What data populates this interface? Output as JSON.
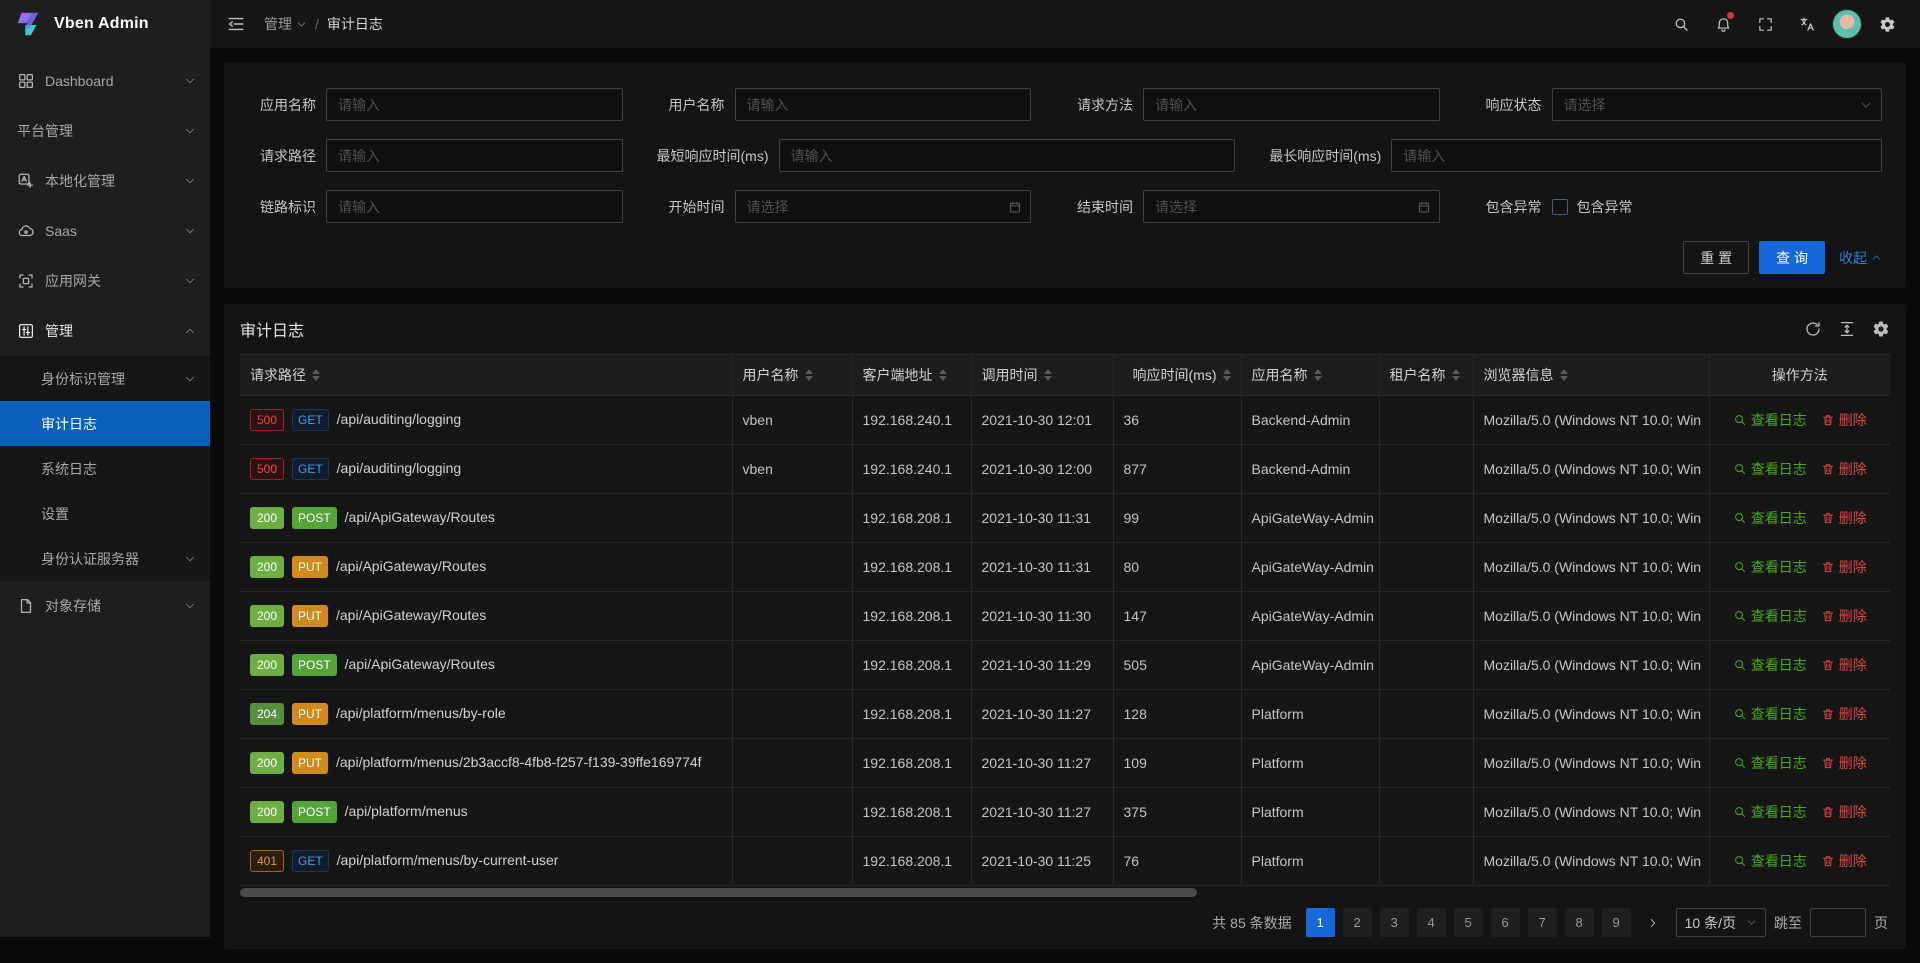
{
  "colors": {
    "primary_blue": "#1668dc",
    "menu_active_blue": "#0960bd",
    "link_blue": "#2a7dd2",
    "success_green_solid": "#6fae43",
    "method_get_blue": "#3c9ae8",
    "method_put_orange": "#d08a1e",
    "status_500_red": "#e84749",
    "status_401_orange": "#e89a3c",
    "action_view_green": "#49aa19",
    "action_delete_red": "#dc4446",
    "notification_dot_red": "#d9363e"
  },
  "sidebar": {
    "logo_text": "Vben Admin",
    "items": [
      {
        "label": "Dashboard",
        "icon": "dashboard",
        "chevron": "down",
        "level": 1
      },
      {
        "label": "平台管理",
        "icon": null,
        "chevron": "down",
        "level": 1
      },
      {
        "label": "本地化管理",
        "icon": "localization",
        "chevron": "down",
        "level": 1
      },
      {
        "label": "Saas",
        "icon": "saas",
        "chevron": "down",
        "level": 1
      },
      {
        "label": "应用网关",
        "icon": "gateway",
        "chevron": "down",
        "level": 1
      },
      {
        "label": "管理",
        "icon": "manage",
        "chevron": "up",
        "level": 1,
        "open": true
      },
      {
        "label": "身份标识管理",
        "icon": null,
        "chevron": "down",
        "level": 2
      },
      {
        "label": "审计日志",
        "icon": null,
        "chevron": null,
        "level": 2,
        "active": true
      },
      {
        "label": "系统日志",
        "icon": null,
        "chevron": null,
        "level": 2
      },
      {
        "label": "设置",
        "icon": null,
        "chevron": null,
        "level": 2
      },
      {
        "label": "身份认证服务器",
        "icon": null,
        "chevron": "down",
        "level": 2
      },
      {
        "label": "对象存储",
        "icon": "storage",
        "chevron": "down",
        "level": 1
      }
    ]
  },
  "topbar": {
    "breadcrumb": {
      "root": "管理",
      "current": "审计日志",
      "separator": "/"
    }
  },
  "filter": {
    "fields": {
      "app_name": {
        "label": "应用名称",
        "placeholder": "请输入"
      },
      "user_name": {
        "label": "用户名称",
        "placeholder": "请输入"
      },
      "method": {
        "label": "请求方法",
        "placeholder": "请输入"
      },
      "status": {
        "label": "响应状态",
        "placeholder": "请选择"
      },
      "path": {
        "label": "请求路径",
        "placeholder": "请输入"
      },
      "min_time": {
        "label": "最短响应时间(ms)",
        "placeholder": "请输入"
      },
      "max_time": {
        "label": "最长响应时间(ms)",
        "placeholder": "请输入"
      },
      "trace_id": {
        "label": "链路标识",
        "placeholder": "请输入"
      },
      "start_time": {
        "label": "开始时间",
        "placeholder": "请选择"
      },
      "end_time": {
        "label": "结束时间",
        "placeholder": "请选择"
      },
      "exception": {
        "label": "包含异常",
        "checkbox_label": "包含异常",
        "checked": false
      }
    },
    "buttons": {
      "reset": "重 置",
      "search": "查 询",
      "collapse": "收起"
    }
  },
  "table": {
    "title": "审计日志",
    "columns": [
      {
        "label": "请求路径",
        "sortable": true,
        "align": "left"
      },
      {
        "label": "用户名称",
        "sortable": true,
        "align": "left"
      },
      {
        "label": "客户端地址",
        "sortable": true,
        "align": "left"
      },
      {
        "label": "调用时间",
        "sortable": true,
        "align": "left"
      },
      {
        "label": "响应时间(ms)",
        "sortable": true,
        "align": "right"
      },
      {
        "label": "应用名称",
        "sortable": true,
        "align": "left"
      },
      {
        "label": "租户名称",
        "sortable": true,
        "align": "left"
      },
      {
        "label": "浏览器信息",
        "sortable": true,
        "align": "left"
      },
      {
        "label": "操作方法",
        "sortable": false,
        "align": "center"
      }
    ],
    "row_actions": {
      "view": "查看日志",
      "delete": "删除"
    },
    "rows": [
      {
        "status": "500",
        "method": "GET",
        "path": "/api/auditing/logging",
        "user": "vben",
        "ip": "192.168.240.1",
        "time": "2021-10-30 12:01",
        "ms": "36",
        "app": "Backend-Admin",
        "tenant": "",
        "browser": "Mozilla/5.0 (Windows NT 10.0; Win"
      },
      {
        "status": "500",
        "method": "GET",
        "path": "/api/auditing/logging",
        "user": "vben",
        "ip": "192.168.240.1",
        "time": "2021-10-30 12:00",
        "ms": "877",
        "app": "Backend-Admin",
        "tenant": "",
        "browser": "Mozilla/5.0 (Windows NT 10.0; Win"
      },
      {
        "status": "200",
        "method": "POST",
        "path": "/api/ApiGateway/Routes",
        "user": "",
        "ip": "192.168.208.1",
        "time": "2021-10-30 11:31",
        "ms": "99",
        "app": "ApiGateWay-Admin",
        "tenant": "",
        "browser": "Mozilla/5.0 (Windows NT 10.0; Win"
      },
      {
        "status": "200",
        "method": "PUT",
        "path": "/api/ApiGateway/Routes",
        "user": "",
        "ip": "192.168.208.1",
        "time": "2021-10-30 11:31",
        "ms": "80",
        "app": "ApiGateWay-Admin",
        "tenant": "",
        "browser": "Mozilla/5.0 (Windows NT 10.0; Win"
      },
      {
        "status": "200",
        "method": "PUT",
        "path": "/api/ApiGateway/Routes",
        "user": "",
        "ip": "192.168.208.1",
        "time": "2021-10-30 11:30",
        "ms": "147",
        "app": "ApiGateWay-Admin",
        "tenant": "",
        "browser": "Mozilla/5.0 (Windows NT 10.0; Win"
      },
      {
        "status": "200",
        "method": "POST",
        "path": "/api/ApiGateway/Routes",
        "user": "",
        "ip": "192.168.208.1",
        "time": "2021-10-30 11:29",
        "ms": "505",
        "app": "ApiGateWay-Admin",
        "tenant": "",
        "browser": "Mozilla/5.0 (Windows NT 10.0; Win"
      },
      {
        "status": "204",
        "method": "PUT",
        "path": "/api/platform/menus/by-role",
        "user": "",
        "ip": "192.168.208.1",
        "time": "2021-10-30 11:27",
        "ms": "128",
        "app": "Platform",
        "tenant": "",
        "browser": "Mozilla/5.0 (Windows NT 10.0; Win"
      },
      {
        "status": "200",
        "method": "PUT",
        "path": "/api/platform/menus/2b3accf8-4fb8-f257-f139-39ffe169774f",
        "user": "",
        "ip": "192.168.208.1",
        "time": "2021-10-30 11:27",
        "ms": "109",
        "app": "Platform",
        "tenant": "",
        "browser": "Mozilla/5.0 (Windows NT 10.0; Win"
      },
      {
        "status": "200",
        "method": "POST",
        "path": "/api/platform/menus",
        "user": "",
        "ip": "192.168.208.1",
        "time": "2021-10-30 11:27",
        "ms": "375",
        "app": "Platform",
        "tenant": "",
        "browser": "Mozilla/5.0 (Windows NT 10.0; Win"
      },
      {
        "status": "401",
        "method": "GET",
        "path": "/api/platform/menus/by-current-user",
        "user": "",
        "ip": "192.168.208.1",
        "time": "2021-10-30 11:25",
        "ms": "76",
        "app": "Platform",
        "tenant": "",
        "browser": "Mozilla/5.0 (Windows NT 10.0; Win"
      }
    ]
  },
  "pagination": {
    "total_text": "共 85 条数据",
    "pages": [
      "1",
      "2",
      "3",
      "4",
      "5",
      "6",
      "7",
      "8",
      "9"
    ],
    "active_page": "1",
    "page_size_label": "10 条/页",
    "jump_label": "跳至",
    "jump_suffix": "页"
  }
}
